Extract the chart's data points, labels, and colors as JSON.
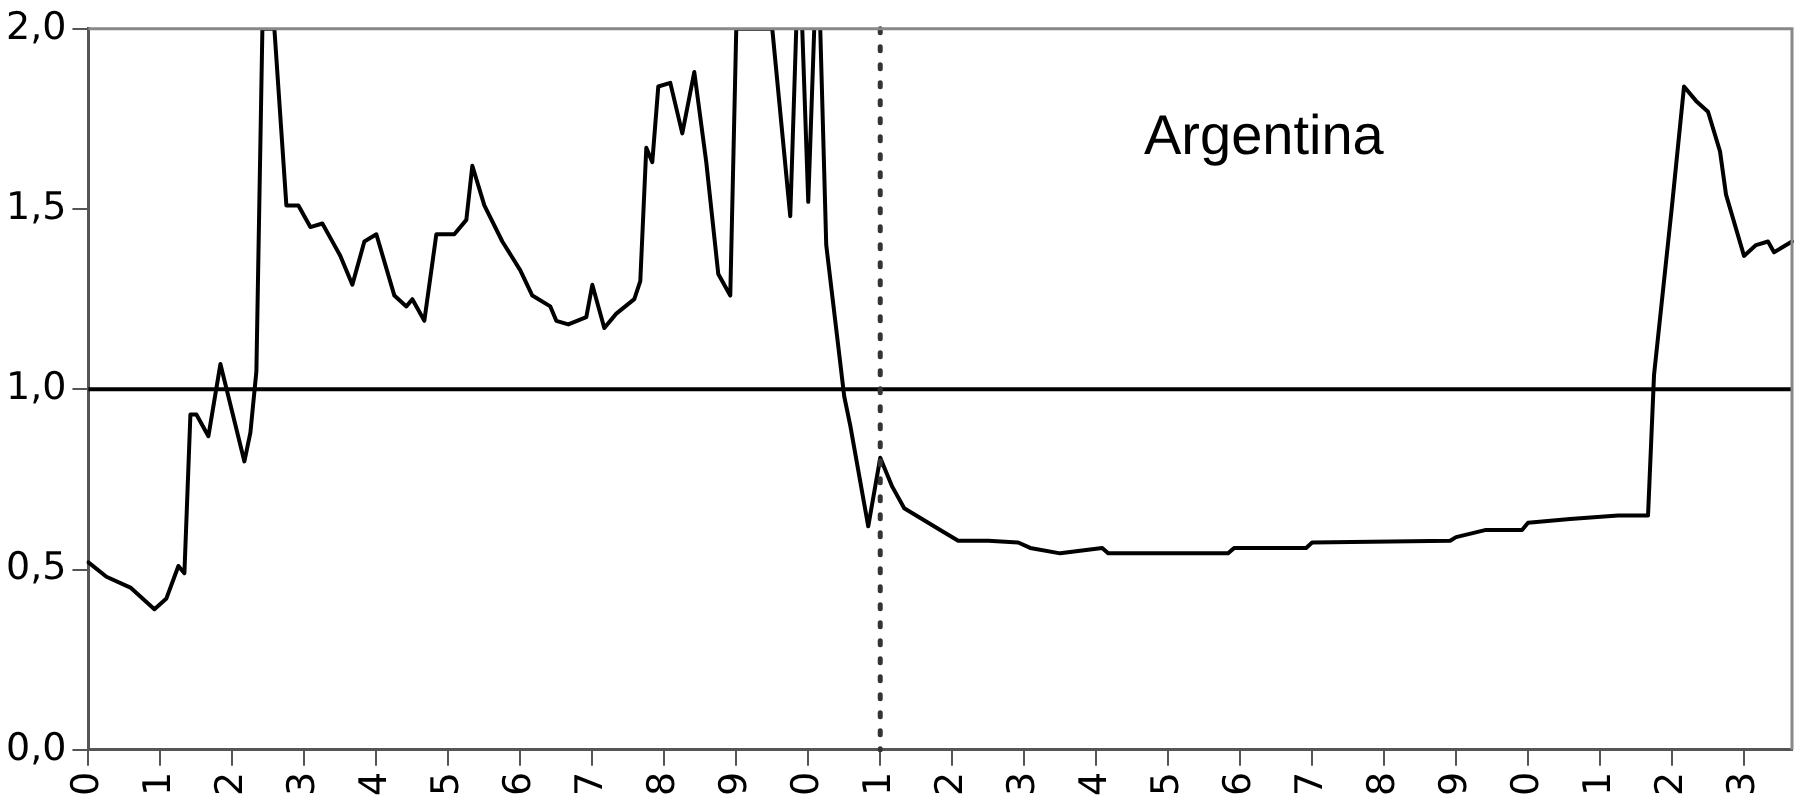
{
  "chart_data": {
    "type": "line",
    "annotations": [
      "Argentina"
    ],
    "categories": [
      "0",
      null,
      null,
      null,
      null,
      null,
      null,
      null,
      null,
      null,
      null,
      null,
      "1",
      null,
      null,
      null,
      null,
      null,
      null,
      null,
      null,
      null,
      null,
      null,
      "2",
      null,
      null,
      null,
      null,
      null,
      null,
      null,
      null,
      null,
      null,
      null,
      "3",
      null,
      null,
      null,
      null,
      null,
      null,
      null,
      null,
      null,
      null,
      null,
      "4",
      null,
      null,
      null,
      null,
      null,
      null,
      null,
      null,
      null,
      null,
      null,
      "5",
      null,
      null,
      null,
      null,
      null,
      null,
      null,
      null,
      null,
      null,
      null,
      "6",
      null,
      null,
      null,
      null,
      null,
      null,
      null,
      null,
      null,
      null,
      null,
      "7",
      null,
      null,
      null,
      null,
      null,
      null,
      null,
      null,
      null,
      null,
      null,
      "8",
      null,
      null,
      null,
      null,
      null,
      null,
      null,
      null,
      null,
      null,
      null,
      "9",
      null,
      null,
      null,
      null,
      null,
      null,
      null,
      null,
      null,
      null,
      null,
      "0",
      null,
      null,
      null,
      null,
      null,
      null,
      null,
      null,
      null,
      null,
      null,
      "1",
      null,
      null,
      null,
      null,
      null,
      null,
      null,
      null,
      null,
      null,
      null,
      "2",
      null,
      null,
      null,
      null,
      null,
      null,
      null,
      null,
      null,
      null,
      null,
      "3",
      null,
      null,
      null,
      null,
      null,
      null,
      null,
      null,
      null,
      null,
      null,
      "4",
      null,
      null,
      null,
      null,
      null,
      null,
      null,
      null,
      null,
      null,
      null,
      "5",
      null,
      null,
      null,
      null,
      null,
      null,
      null,
      null,
      null,
      null,
      null,
      "6",
      null,
      null,
      null,
      null,
      null,
      null,
      null,
      null,
      null,
      null,
      null,
      "7",
      null,
      null,
      null,
      null,
      null,
      null,
      null,
      null,
      null,
      null,
      null,
      "8",
      null,
      null,
      null,
      null,
      null,
      null,
      null,
      null,
      null,
      null,
      null,
      "9",
      null,
      null,
      null,
      null,
      null,
      null,
      null,
      null,
      null,
      null,
      null,
      "0",
      null,
      null,
      null,
      null,
      null,
      null,
      null,
      null,
      null,
      null,
      null,
      "1",
      null,
      null,
      null,
      null,
      null,
      null,
      null,
      null,
      null,
      null,
      null,
      "2",
      null,
      null,
      null,
      null,
      null,
      null,
      null,
      null,
      null,
      null,
      null,
      "3",
      null,
      null,
      null,
      null,
      null,
      null,
      null,
      null
    ],
    "series": [
      {
        "color": "#000000",
        "values": [
          0.52,
          null,
          null,
          0.48,
          null,
          null,
          null,
          0.45,
          null,
          null,
          null,
          0.39,
          null,
          0.42,
          null,
          0.51,
          0.49,
          0.93,
          0.93,
          null,
          0.87,
          null,
          1.07,
          null,
          null,
          null,
          0.8,
          0.88,
          1.05,
          2.0,
          null,
          2.0,
          null,
          1.51,
          null,
          1.51,
          null,
          1.45,
          null,
          1.46,
          null,
          1.4,
          1.37,
          null,
          1.29,
          null,
          1.41,
          null,
          1.43,
          null,
          null,
          1.26,
          null,
          1.23,
          1.25,
          null,
          1.19,
          null,
          1.43,
          null,
          null,
          1.43,
          null,
          1.47,
          1.62,
          null,
          1.51,
          null,
          null,
          1.41,
          null,
          null,
          1.33,
          null,
          1.26,
          null,
          null,
          1.23,
          1.19,
          null,
          1.18,
          null,
          null,
          1.2,
          1.29,
          null,
          1.17,
          null,
          1.21,
          null,
          null,
          1.25,
          1.3,
          1.67,
          1.63,
          1.84,
          null,
          1.85,
          null,
          1.71,
          null,
          1.88,
          null,
          1.63,
          null,
          1.32,
          null,
          1.26,
          2.0,
          null,
          null,
          null,
          null,
          null,
          2.0,
          null,
          null,
          1.48,
          2.0,
          2.0,
          1.52,
          2.0,
          2.0,
          1.4,
          null,
          null,
          0.98,
          0.9,
          null,
          null,
          0.62,
          null,
          0.81,
          null,
          0.73,
          null,
          0.67,
          null,
          0.65,
          null,
          null,
          null,
          0.61,
          null,
          null,
          0.58,
          null,
          null,
          null,
          null,
          0.58,
          null,
          null,
          null,
          null,
          0.575,
          null,
          0.56,
          null,
          null,
          null,
          null,
          0.545,
          null,
          null,
          null,
          null,
          null,
          null,
          0.56,
          0.545,
          null,
          null,
          null,
          null,
          null,
          null,
          null,
          null,
          null,
          null,
          null,
          null,
          null,
          null,
          null,
          null,
          null,
          null,
          null,
          0.545,
          0.56,
          null,
          null,
          null,
          null,
          null,
          null,
          null,
          null,
          null,
          null,
          null,
          0.56,
          0.575,
          null,
          null,
          null,
          null,
          null,
          null,
          null,
          null,
          null,
          null,
          null,
          null,
          null,
          null,
          null,
          null,
          null,
          null,
          null,
          null,
          null,
          null,
          0.58,
          0.59,
          null,
          null,
          null,
          null,
          0.61,
          null,
          null,
          null,
          null,
          null,
          0.61,
          0.63,
          null,
          null,
          null,
          null,
          null,
          null,
          0.64,
          null,
          null,
          null,
          null,
          null,
          null,
          null,
          0.65,
          null,
          null,
          null,
          null,
          0.65,
          1.04,
          null,
          null,
          1.51,
          null,
          1.84,
          null,
          1.8,
          null,
          1.77,
          null,
          1.66,
          1.54,
          null,
          null,
          1.37,
          null,
          1.4,
          null,
          1.41,
          1.38,
          null,
          null,
          1.41
        ]
      }
    ],
    "ylim": [
      0,
      2.0
    ],
    "yticks": [
      {
        "value": 0,
        "label": "0,0"
      },
      {
        "value": 0.5,
        "label": "0,5"
      },
      {
        "value": 1.0,
        "label": "1,0"
      },
      {
        "value": 1.5,
        "label": "1,5"
      },
      {
        "value": 2.0,
        "label": "2,0"
      }
    ],
    "ref_lines": [
      {
        "axis": "y",
        "value": 1.0,
        "color": "#000000",
        "line_style": "solid"
      }
    ],
    "grid": false,
    "legend": false,
    "marker": "none",
    "line_style": "solid"
  }
}
